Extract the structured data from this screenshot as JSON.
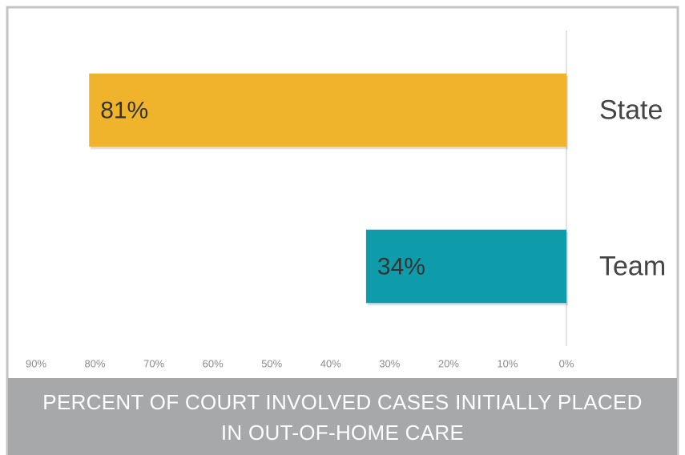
{
  "chart_data": {
    "type": "bar",
    "orientation": "horizontal",
    "reversed_x": true,
    "title": "PERCENT OF COURT INVOLVED CASES INITIALLY PLACED IN OUT-OF-HOME CARE",
    "categories": [
      "State",
      "Team"
    ],
    "values": [
      81,
      34
    ],
    "value_labels": [
      "81%",
      "34%"
    ],
    "colors": [
      "#efb42b",
      "#0e9cab"
    ],
    "xlim": [
      0,
      90
    ],
    "xticks": [
      {
        "value": 90,
        "label": "90%"
      },
      {
        "value": 80,
        "label": "80%"
      },
      {
        "value": 70,
        "label": "70%"
      },
      {
        "value": 60,
        "label": "60%"
      },
      {
        "value": 50,
        "label": "50%"
      },
      {
        "value": 40,
        "label": "40%"
      },
      {
        "value": 30,
        "label": "30%"
      },
      {
        "value": 20,
        "label": "20%"
      },
      {
        "value": 10,
        "label": "10%"
      },
      {
        "value": 0,
        "label": "0%"
      }
    ],
    "grid": false
  }
}
